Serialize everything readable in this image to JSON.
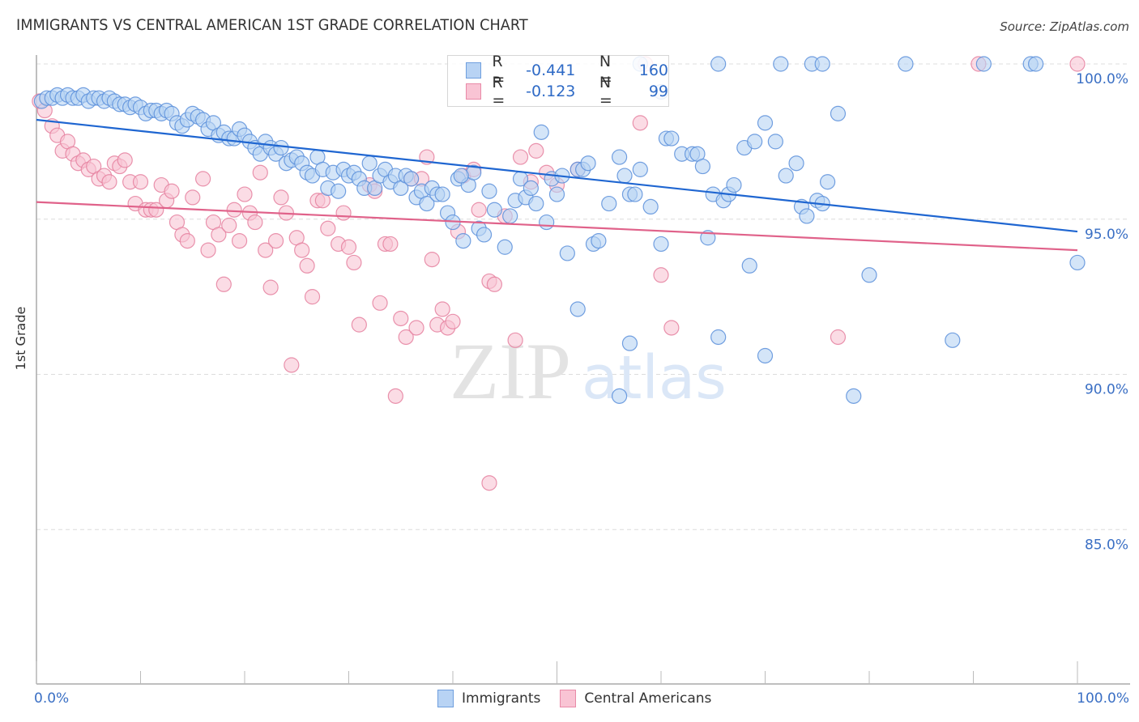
{
  "header": {
    "title": "IMMIGRANTS VS CENTRAL AMERICAN 1ST GRADE CORRELATION CHART",
    "source": "Source: ZipAtlas.com"
  },
  "legend_top": {
    "rows": [
      {
        "r_label": "R =",
        "r_value": "-0.441",
        "n_label": "N =",
        "n_value": "160"
      },
      {
        "r_label": "R =",
        "r_value": "-0.123",
        "n_label": "N =",
        "n_value": "99"
      }
    ]
  },
  "legend_bottom": {
    "items": [
      {
        "label": "Immigrants"
      },
      {
        "label": "Central Americans"
      }
    ]
  },
  "watermark": {
    "zip": "ZIP",
    "atlas": "atlas"
  },
  "colors": {
    "immigrants_fill": "#b8d3f4",
    "immigrants_stroke": "#5b8fdb",
    "immigrants_line": "#1f66d1",
    "central_fill": "#f9c4d4",
    "central_stroke": "#e5809f",
    "central_line": "#e0628a",
    "tick_text": "#3a6fc4"
  },
  "chart_data": {
    "type": "scatter",
    "title": "IMMIGRANTS VS CENTRAL AMERICAN 1ST GRADE CORRELATION CHART",
    "xlabel": "",
    "ylabel": "1st Grade",
    "xlim": [
      0,
      100
    ],
    "ylim": [
      80,
      100.5
    ],
    "x_tick_labels": [
      "0.0%",
      "100.0%"
    ],
    "y_ticks": [
      100,
      95,
      90,
      85
    ],
    "y_tick_labels": [
      "100.0%",
      "95.0%",
      "90.0%",
      "85.0%"
    ],
    "grid": "horizontal-dashed",
    "legend_placement": "top-center",
    "series": [
      {
        "name": "Immigrants",
        "R": -0.441,
        "N": 160,
        "trend": {
          "x": [
            0,
            100
          ],
          "y": [
            98.2,
            94.6
          ]
        },
        "points": [
          [
            0.5,
            98.8
          ],
          [
            1.0,
            98.9
          ],
          [
            1.5,
            98.9
          ],
          [
            2.0,
            99.0
          ],
          [
            2.5,
            98.9
          ],
          [
            3.0,
            99.0
          ],
          [
            3.5,
            98.9
          ],
          [
            4.0,
            98.9
          ],
          [
            4.5,
            99.0
          ],
          [
            5.0,
            98.8
          ],
          [
            5.5,
            98.9
          ],
          [
            6.0,
            98.9
          ],
          [
            6.5,
            98.8
          ],
          [
            7.0,
            98.9
          ],
          [
            7.5,
            98.8
          ],
          [
            8.0,
            98.7
          ],
          [
            8.5,
            98.7
          ],
          [
            9.0,
            98.6
          ],
          [
            9.5,
            98.7
          ],
          [
            10.0,
            98.6
          ],
          [
            10.5,
            98.4
          ],
          [
            11.0,
            98.5
          ],
          [
            11.5,
            98.5
          ],
          [
            12.0,
            98.4
          ],
          [
            12.5,
            98.5
          ],
          [
            13.0,
            98.4
          ],
          [
            13.5,
            98.1
          ],
          [
            14.0,
            98.0
          ],
          [
            14.5,
            98.2
          ],
          [
            15.0,
            98.4
          ],
          [
            15.5,
            98.3
          ],
          [
            16.0,
            98.2
          ],
          [
            16.5,
            97.9
          ],
          [
            17.0,
            98.1
          ],
          [
            17.5,
            97.7
          ],
          [
            18.0,
            97.8
          ],
          [
            18.5,
            97.6
          ],
          [
            19.0,
            97.6
          ],
          [
            19.5,
            97.9
          ],
          [
            20.0,
            97.7
          ],
          [
            20.5,
            97.5
          ],
          [
            21.0,
            97.3
          ],
          [
            21.5,
            97.1
          ],
          [
            22.0,
            97.5
          ],
          [
            22.5,
            97.3
          ],
          [
            23.0,
            97.1
          ],
          [
            23.5,
            97.3
          ],
          [
            24.0,
            96.8
          ],
          [
            24.5,
            96.9
          ],
          [
            25.0,
            97.0
          ],
          [
            25.5,
            96.8
          ],
          [
            26.0,
            96.5
          ],
          [
            26.5,
            96.4
          ],
          [
            27.0,
            97.0
          ],
          [
            27.5,
            96.6
          ],
          [
            28.0,
            96.0
          ],
          [
            28.5,
            96.5
          ],
          [
            29.0,
            95.9
          ],
          [
            29.5,
            96.6
          ],
          [
            30.0,
            96.4
          ],
          [
            30.5,
            96.5
          ],
          [
            31.0,
            96.3
          ],
          [
            31.5,
            96.0
          ],
          [
            32.0,
            96.8
          ],
          [
            32.5,
            96.0
          ],
          [
            33.0,
            96.4
          ],
          [
            33.5,
            96.6
          ],
          [
            34.0,
            96.2
          ],
          [
            34.5,
            96.4
          ],
          [
            35.0,
            96.0
          ],
          [
            35.5,
            96.4
          ],
          [
            36.0,
            96.3
          ],
          [
            36.5,
            95.7
          ],
          [
            37.0,
            95.9
          ],
          [
            37.5,
            95.5
          ],
          [
            38.0,
            96.0
          ],
          [
            38.5,
            95.8
          ],
          [
            39.0,
            95.8
          ],
          [
            39.5,
            95.2
          ],
          [
            40.0,
            94.9
          ],
          [
            40.5,
            96.3
          ],
          [
            41.0,
            94.3
          ],
          [
            41.5,
            96.1
          ],
          [
            42.0,
            96.5
          ],
          [
            42.5,
            94.7
          ],
          [
            43.0,
            94.5
          ],
          [
            43.5,
            95.9
          ],
          [
            44.0,
            95.3
          ],
          [
            45.0,
            94.1
          ],
          [
            45.5,
            95.1
          ],
          [
            46.0,
            95.6
          ],
          [
            46.5,
            96.3
          ],
          [
            47.0,
            95.7
          ],
          [
            47.5,
            96.0
          ],
          [
            48.0,
            95.5
          ],
          [
            48.5,
            97.8
          ],
          [
            49.0,
            94.9
          ],
          [
            49.5,
            96.3
          ],
          [
            50.0,
            95.8
          ],
          [
            50.5,
            96.4
          ],
          [
            51.0,
            93.9
          ],
          [
            52.0,
            96.6
          ],
          [
            52.5,
            96.6
          ],
          [
            53.0,
            96.8
          ],
          [
            53.5,
            94.2
          ],
          [
            54.0,
            94.3
          ],
          [
            55.0,
            95.5
          ],
          [
            56.0,
            97.0
          ],
          [
            56.5,
            96.4
          ],
          [
            57.0,
            95.8
          ],
          [
            57.5,
            95.8
          ],
          [
            58.0,
            96.6
          ],
          [
            59.0,
            95.4
          ],
          [
            60.0,
            94.2
          ],
          [
            60.5,
            97.6
          ],
          [
            61.0,
            97.6
          ],
          [
            62.0,
            97.1
          ],
          [
            63.0,
            97.1
          ],
          [
            63.5,
            97.1
          ],
          [
            64.0,
            96.7
          ],
          [
            64.5,
            94.4
          ],
          [
            65.0,
            95.8
          ],
          [
            66.0,
            95.6
          ],
          [
            66.5,
            95.8
          ],
          [
            67.0,
            96.1
          ],
          [
            68.0,
            97.3
          ],
          [
            69.0,
            97.5
          ],
          [
            70.0,
            98.1
          ],
          [
            71.0,
            97.5
          ],
          [
            72.0,
            96.4
          ],
          [
            73.0,
            96.8
          ],
          [
            73.5,
            95.4
          ],
          [
            74.0,
            95.1
          ],
          [
            75.0,
            95.6
          ],
          [
            75.5,
            95.5
          ],
          [
            76.0,
            96.2
          ],
          [
            77.0,
            98.4
          ],
          [
            65.5,
            91.2
          ],
          [
            70.0,
            90.6
          ],
          [
            68.5,
            93.5
          ],
          [
            80.0,
            93.2
          ],
          [
            52.0,
            92.1
          ],
          [
            57.0,
            91.0
          ],
          [
            56.0,
            89.3
          ],
          [
            78.5,
            89.3
          ],
          [
            88.0,
            91.1
          ],
          [
            100.0,
            93.6
          ],
          [
            65.5,
            100.0
          ],
          [
            71.5,
            100.0
          ],
          [
            74.5,
            100.0
          ],
          [
            75.5,
            100.0
          ],
          [
            83.5,
            100.0
          ],
          [
            91.0,
            100.0
          ],
          [
            95.5,
            100.0
          ],
          [
            96.0,
            100.0
          ],
          [
            58.0,
            100.0
          ],
          [
            60.0,
            99.1
          ],
          [
            40.8,
            96.4
          ]
        ]
      },
      {
        "name": "Central Americans",
        "R": -0.123,
        "N": 99,
        "trend": {
          "x": [
            0,
            100
          ],
          "y": [
            95.55,
            94.0
          ]
        },
        "points": [
          [
            0.3,
            98.8
          ],
          [
            0.8,
            98.5
          ],
          [
            1.5,
            98.0
          ],
          [
            2.0,
            97.7
          ],
          [
            2.5,
            97.2
          ],
          [
            3.0,
            97.5
          ],
          [
            3.5,
            97.1
          ],
          [
            4.0,
            96.8
          ],
          [
            4.5,
            96.9
          ],
          [
            5.0,
            96.6
          ],
          [
            5.5,
            96.7
          ],
          [
            6.0,
            96.3
          ],
          [
            6.5,
            96.4
          ],
          [
            7.0,
            96.2
          ],
          [
            7.5,
            96.8
          ],
          [
            8.0,
            96.7
          ],
          [
            8.5,
            96.9
          ],
          [
            9.0,
            96.2
          ],
          [
            9.5,
            95.5
          ],
          [
            10.0,
            96.2
          ],
          [
            10.5,
            95.3
          ],
          [
            11.0,
            95.3
          ],
          [
            11.5,
            95.3
          ],
          [
            12.0,
            96.1
          ],
          [
            12.5,
            95.6
          ],
          [
            13.0,
            95.9
          ],
          [
            13.5,
            94.9
          ],
          [
            14.0,
            94.5
          ],
          [
            14.5,
            94.3
          ],
          [
            15.0,
            95.7
          ],
          [
            16.0,
            96.3
          ],
          [
            16.5,
            94.0
          ],
          [
            17.0,
            94.9
          ],
          [
            17.5,
            94.5
          ],
          [
            18.0,
            92.9
          ],
          [
            18.5,
            94.8
          ],
          [
            19.0,
            95.3
          ],
          [
            19.5,
            94.3
          ],
          [
            20.0,
            95.8
          ],
          [
            20.5,
            95.2
          ],
          [
            21.0,
            94.9
          ],
          [
            21.5,
            96.5
          ],
          [
            22.0,
            94.0
          ],
          [
            22.5,
            92.8
          ],
          [
            23.0,
            94.3
          ],
          [
            23.5,
            95.7
          ],
          [
            24.0,
            95.2
          ],
          [
            24.5,
            90.3
          ],
          [
            25.0,
            94.4
          ],
          [
            25.5,
            94.0
          ],
          [
            26.0,
            93.5
          ],
          [
            26.5,
            92.5
          ],
          [
            27.0,
            95.6
          ],
          [
            27.5,
            95.6
          ],
          [
            28.0,
            94.7
          ],
          [
            29.0,
            94.2
          ],
          [
            29.5,
            95.2
          ],
          [
            30.0,
            94.1
          ],
          [
            30.5,
            93.6
          ],
          [
            31.0,
            91.6
          ],
          [
            32.0,
            96.1
          ],
          [
            32.5,
            95.9
          ],
          [
            33.0,
            92.3
          ],
          [
            33.5,
            94.2
          ],
          [
            34.0,
            94.2
          ],
          [
            34.5,
            89.3
          ],
          [
            35.0,
            91.8
          ],
          [
            35.5,
            91.2
          ],
          [
            36.0,
            96.3
          ],
          [
            36.5,
            91.5
          ],
          [
            37.0,
            96.3
          ],
          [
            37.5,
            97.0
          ],
          [
            38.0,
            93.7
          ],
          [
            38.5,
            91.6
          ],
          [
            39.0,
            92.1
          ],
          [
            39.5,
            91.5
          ],
          [
            40.0,
            91.7
          ],
          [
            40.5,
            94.6
          ],
          [
            41.0,
            96.4
          ],
          [
            42.0,
            96.6
          ],
          [
            42.5,
            95.3
          ],
          [
            43.5,
            93.0
          ],
          [
            44.0,
            92.9
          ],
          [
            45.0,
            95.1
          ],
          [
            46.0,
            91.1
          ],
          [
            46.5,
            97.0
          ],
          [
            47.5,
            96.2
          ],
          [
            48.0,
            97.2
          ],
          [
            49.0,
            96.5
          ],
          [
            50.0,
            96.1
          ],
          [
            52.0,
            96.6
          ],
          [
            58.0,
            98.1
          ],
          [
            60.0,
            93.2
          ],
          [
            61.0,
            91.5
          ],
          [
            77.0,
            91.2
          ],
          [
            43.5,
            86.5
          ],
          [
            58.5,
            100.0
          ],
          [
            90.5,
            100.0
          ],
          [
            100.0,
            100.0
          ]
        ]
      }
    ]
  }
}
